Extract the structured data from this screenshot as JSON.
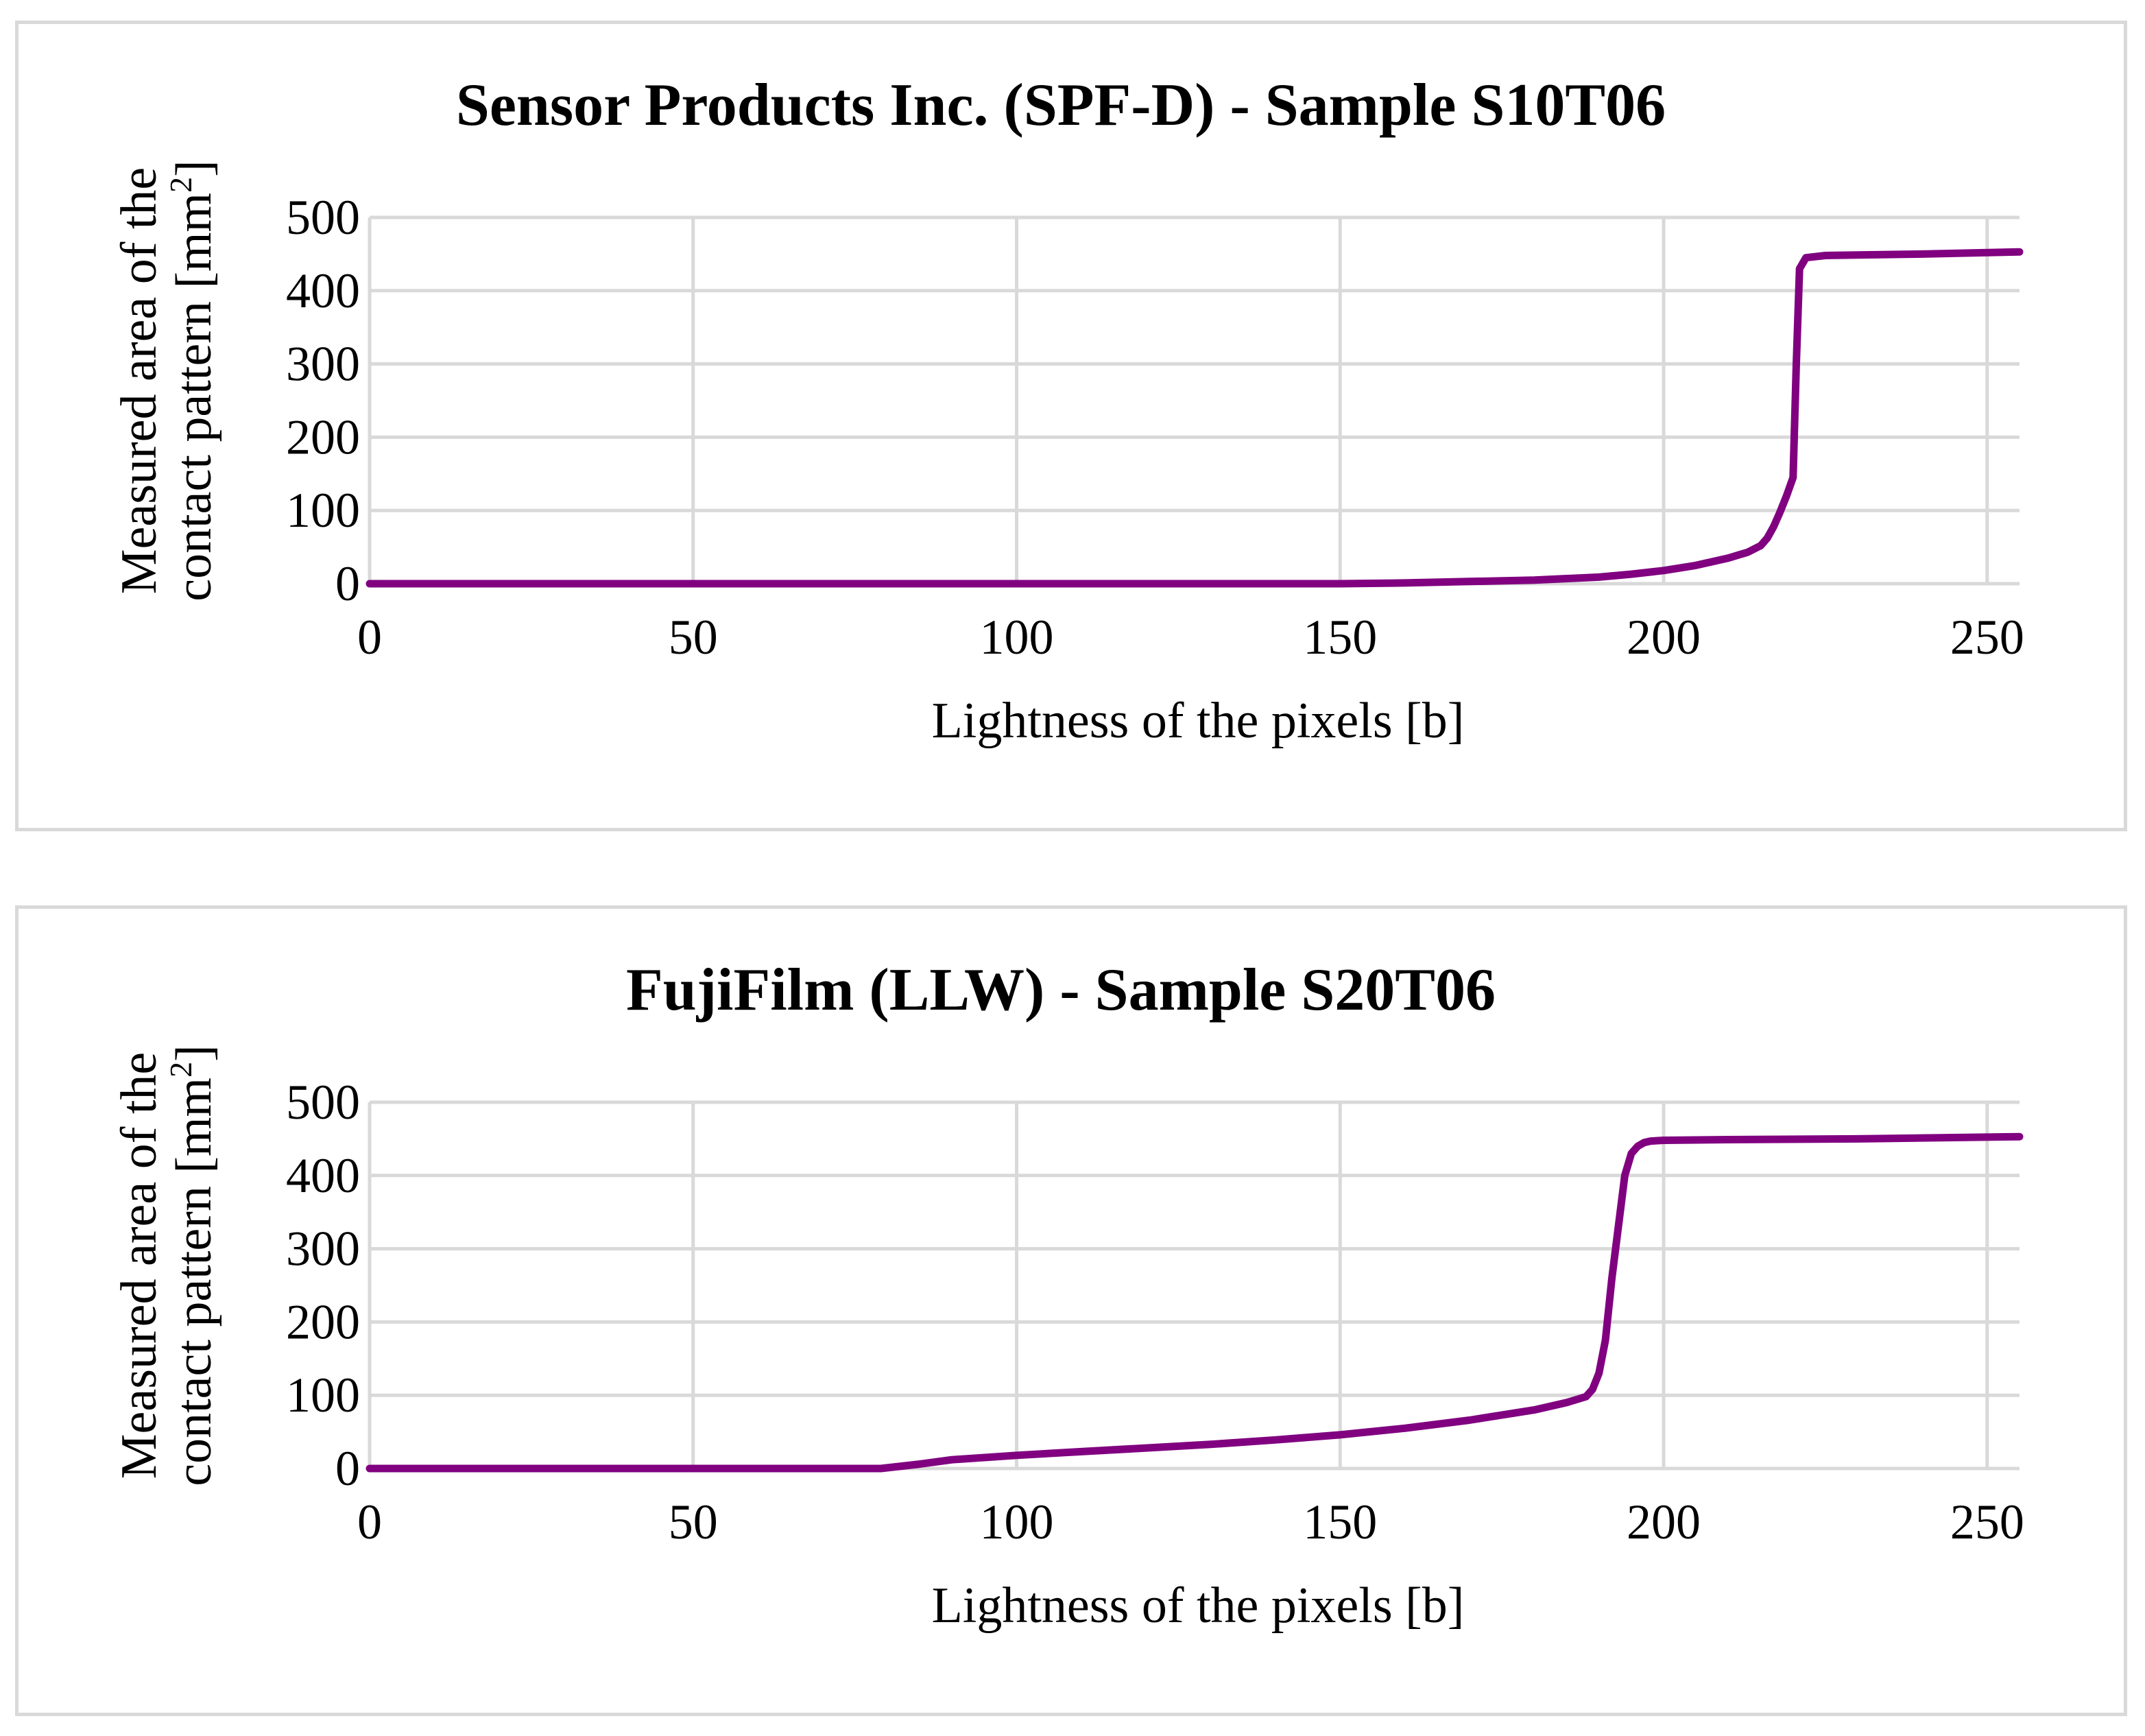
{
  "series_color": "#800080",
  "chart_data": [
    {
      "type": "line",
      "title": "Sensor Products Inc. (SPF-D) - Sample S10T06",
      "xlabel": "Lightness of the pixels [b]",
      "ylabel_line1": "Measured area of the",
      "ylabel_line2": "contact pattern [mm",
      "ylabel_sup": "2",
      "ylabel_end": "]",
      "xlim": [
        0,
        255
      ],
      "ylim": [
        0,
        500
      ],
      "x_ticks": [
        "0",
        "50",
        "100",
        "150",
        "200",
        "250"
      ],
      "y_ticks": [
        "0",
        "100",
        "200",
        "300",
        "400",
        "500"
      ],
      "grid": true,
      "series": [
        {
          "name": "S10T06",
          "x": [
            0,
            150,
            160,
            170,
            180,
            190,
            195,
            200,
            205,
            210,
            213,
            215,
            216,
            217,
            218,
            219,
            220,
            220.5,
            221,
            222,
            225,
            240,
            255
          ],
          "y": [
            0,
            0,
            1,
            3,
            5,
            9,
            13,
            18,
            25,
            35,
            43,
            52,
            62,
            78,
            98,
            120,
            145,
            300,
            430,
            445,
            448,
            450,
            453
          ]
        }
      ]
    },
    {
      "type": "line",
      "title": "FujiFilm (LLW) - Sample S20T06",
      "xlabel": "Lightness of the pixels [b]",
      "ylabel_line1": "Measured area of the",
      "ylabel_line2": "contact pattern [mm",
      "ylabel_sup": "2",
      "ylabel_end": "]",
      "xlim": [
        0,
        255
      ],
      "ylim": [
        0,
        500
      ],
      "x_ticks": [
        "0",
        "50",
        "100",
        "150",
        "200",
        "250"
      ],
      "y_ticks": [
        "0",
        "100",
        "200",
        "300",
        "400",
        "500"
      ],
      "grid": true,
      "series": [
        {
          "name": "S20T06",
          "x": [
            0,
            79,
            85,
            90,
            100,
            110,
            120,
            130,
            140,
            150,
            160,
            170,
            180,
            185,
            188,
            189,
            190,
            191,
            192,
            193,
            194,
            195,
            196,
            197,
            198,
            200,
            210,
            230,
            255
          ],
          "y": [
            0,
            0,
            6,
            12,
            18,
            23,
            28,
            33,
            39,
            46,
            55,
            66,
            80,
            90,
            98,
            108,
            130,
            175,
            260,
            330,
            400,
            430,
            440,
            445,
            447,
            448,
            449,
            450,
            453
          ]
        }
      ]
    }
  ]
}
